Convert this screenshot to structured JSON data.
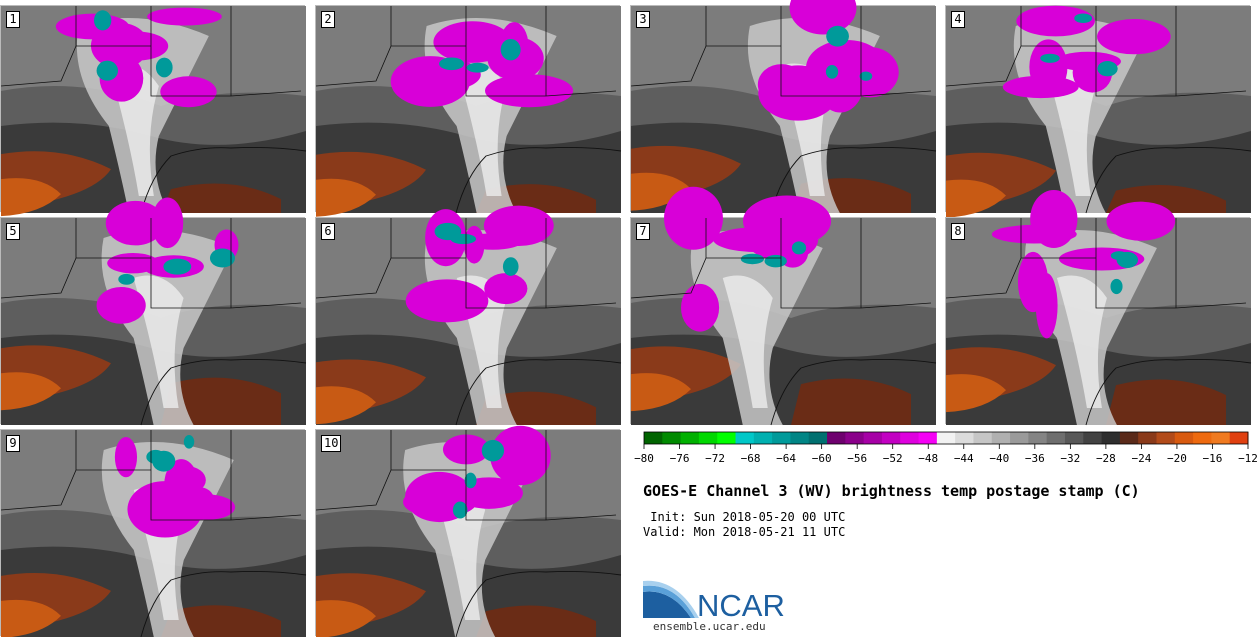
{
  "panels": [
    {
      "label": "1",
      "seed": 11
    },
    {
      "label": "2",
      "seed": 23
    },
    {
      "label": "3",
      "seed": 37
    },
    {
      "label": "4",
      "seed": 41
    },
    {
      "label": "5",
      "seed": 53
    },
    {
      "label": "6",
      "seed": 67
    },
    {
      "label": "7",
      "seed": 71
    },
    {
      "label": "8",
      "seed": 89
    },
    {
      "label": "9",
      "seed": 97
    },
    {
      "label": "10",
      "seed": 103
    }
  ],
  "colorbar": {
    "colors": [
      "#006400",
      "#008a00",
      "#00b000",
      "#00d800",
      "#00ff00",
      "#00c8c8",
      "#00b0b0",
      "#009a9a",
      "#008585",
      "#007070",
      "#6e006e",
      "#8a008a",
      "#a600a6",
      "#c200c2",
      "#de00de",
      "#f500f5",
      "#f2f2f2",
      "#dcdcdc",
      "#c6c6c6",
      "#b0b0b0",
      "#9a9a9a",
      "#848484",
      "#6e6e6e",
      "#585858",
      "#424242",
      "#2e2e2e",
      "#5a2a1a",
      "#8a3a1a",
      "#b24b1a",
      "#d85a10",
      "#ee6a10",
      "#f07a20",
      "#e04010"
    ],
    "tick_labels": [
      "−80",
      "−76",
      "−72",
      "−68",
      "−64",
      "−60",
      "−56",
      "−52",
      "−48",
      "−44",
      "−40",
      "−36",
      "−32",
      "−28",
      "−24",
      "−20",
      "−16",
      "−12"
    ]
  },
  "title": "GOES-E Channel 3 (WV) brightness temp postage stamp (C)",
  "init_line": " Init: Sun 2018-05-20 00 UTC",
  "valid_line": "Valid: Mon 2018-05-21 11 UTC",
  "logo_text": "NCAR",
  "logo_url": "ensemble.ucar.edu"
}
